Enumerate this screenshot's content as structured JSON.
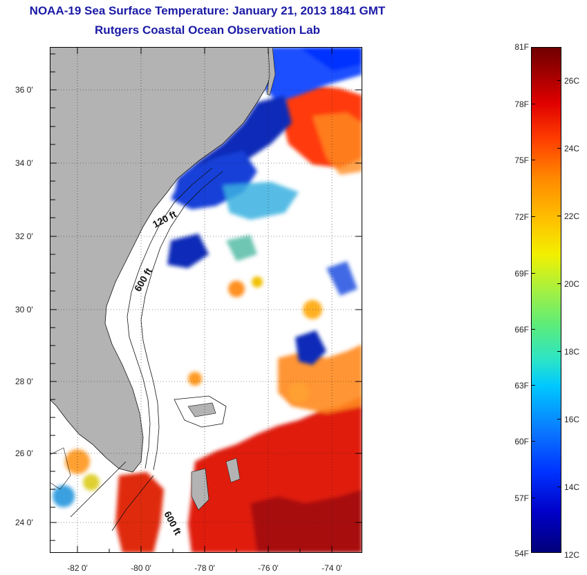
{
  "title": {
    "line1": "NOAA-19 Sea Surface Temperature:  January 21, 2013 1841 GMT",
    "line2": "Rutgers Coastal Ocean Observation Lab"
  },
  "map": {
    "region": "US Southeast Atlantic coast",
    "latitude_labels": [
      "36 0'",
      "34 0'",
      "32 0'",
      "30 0'",
      "28 0'",
      "26 0'",
      "24 0'"
    ],
    "longitude_labels": [
      "-82 0'",
      "-80 0'",
      "-78 0'",
      "-76 0'",
      "-74 0'"
    ],
    "contour_labels": [
      "120 ft",
      "600 ft",
      "600 ft"
    ],
    "colors": {
      "land": "#b3b3b3",
      "no_data": "#ffffff",
      "cold": "#0a2fb0",
      "warm": "#e21a10",
      "hot": "#a00000"
    }
  },
  "colorbar": {
    "fahrenheit_labels": [
      "81F",
      "78F",
      "75F",
      "72F",
      "69F",
      "66F",
      "63F",
      "60F",
      "57F",
      "54F"
    ],
    "celsius_labels": [
      "26C",
      "24C",
      "22C",
      "20C",
      "18C",
      "16C",
      "14C",
      "12C"
    ],
    "range_f": [
      54,
      81
    ],
    "range_c": [
      12,
      27.2
    ]
  }
}
